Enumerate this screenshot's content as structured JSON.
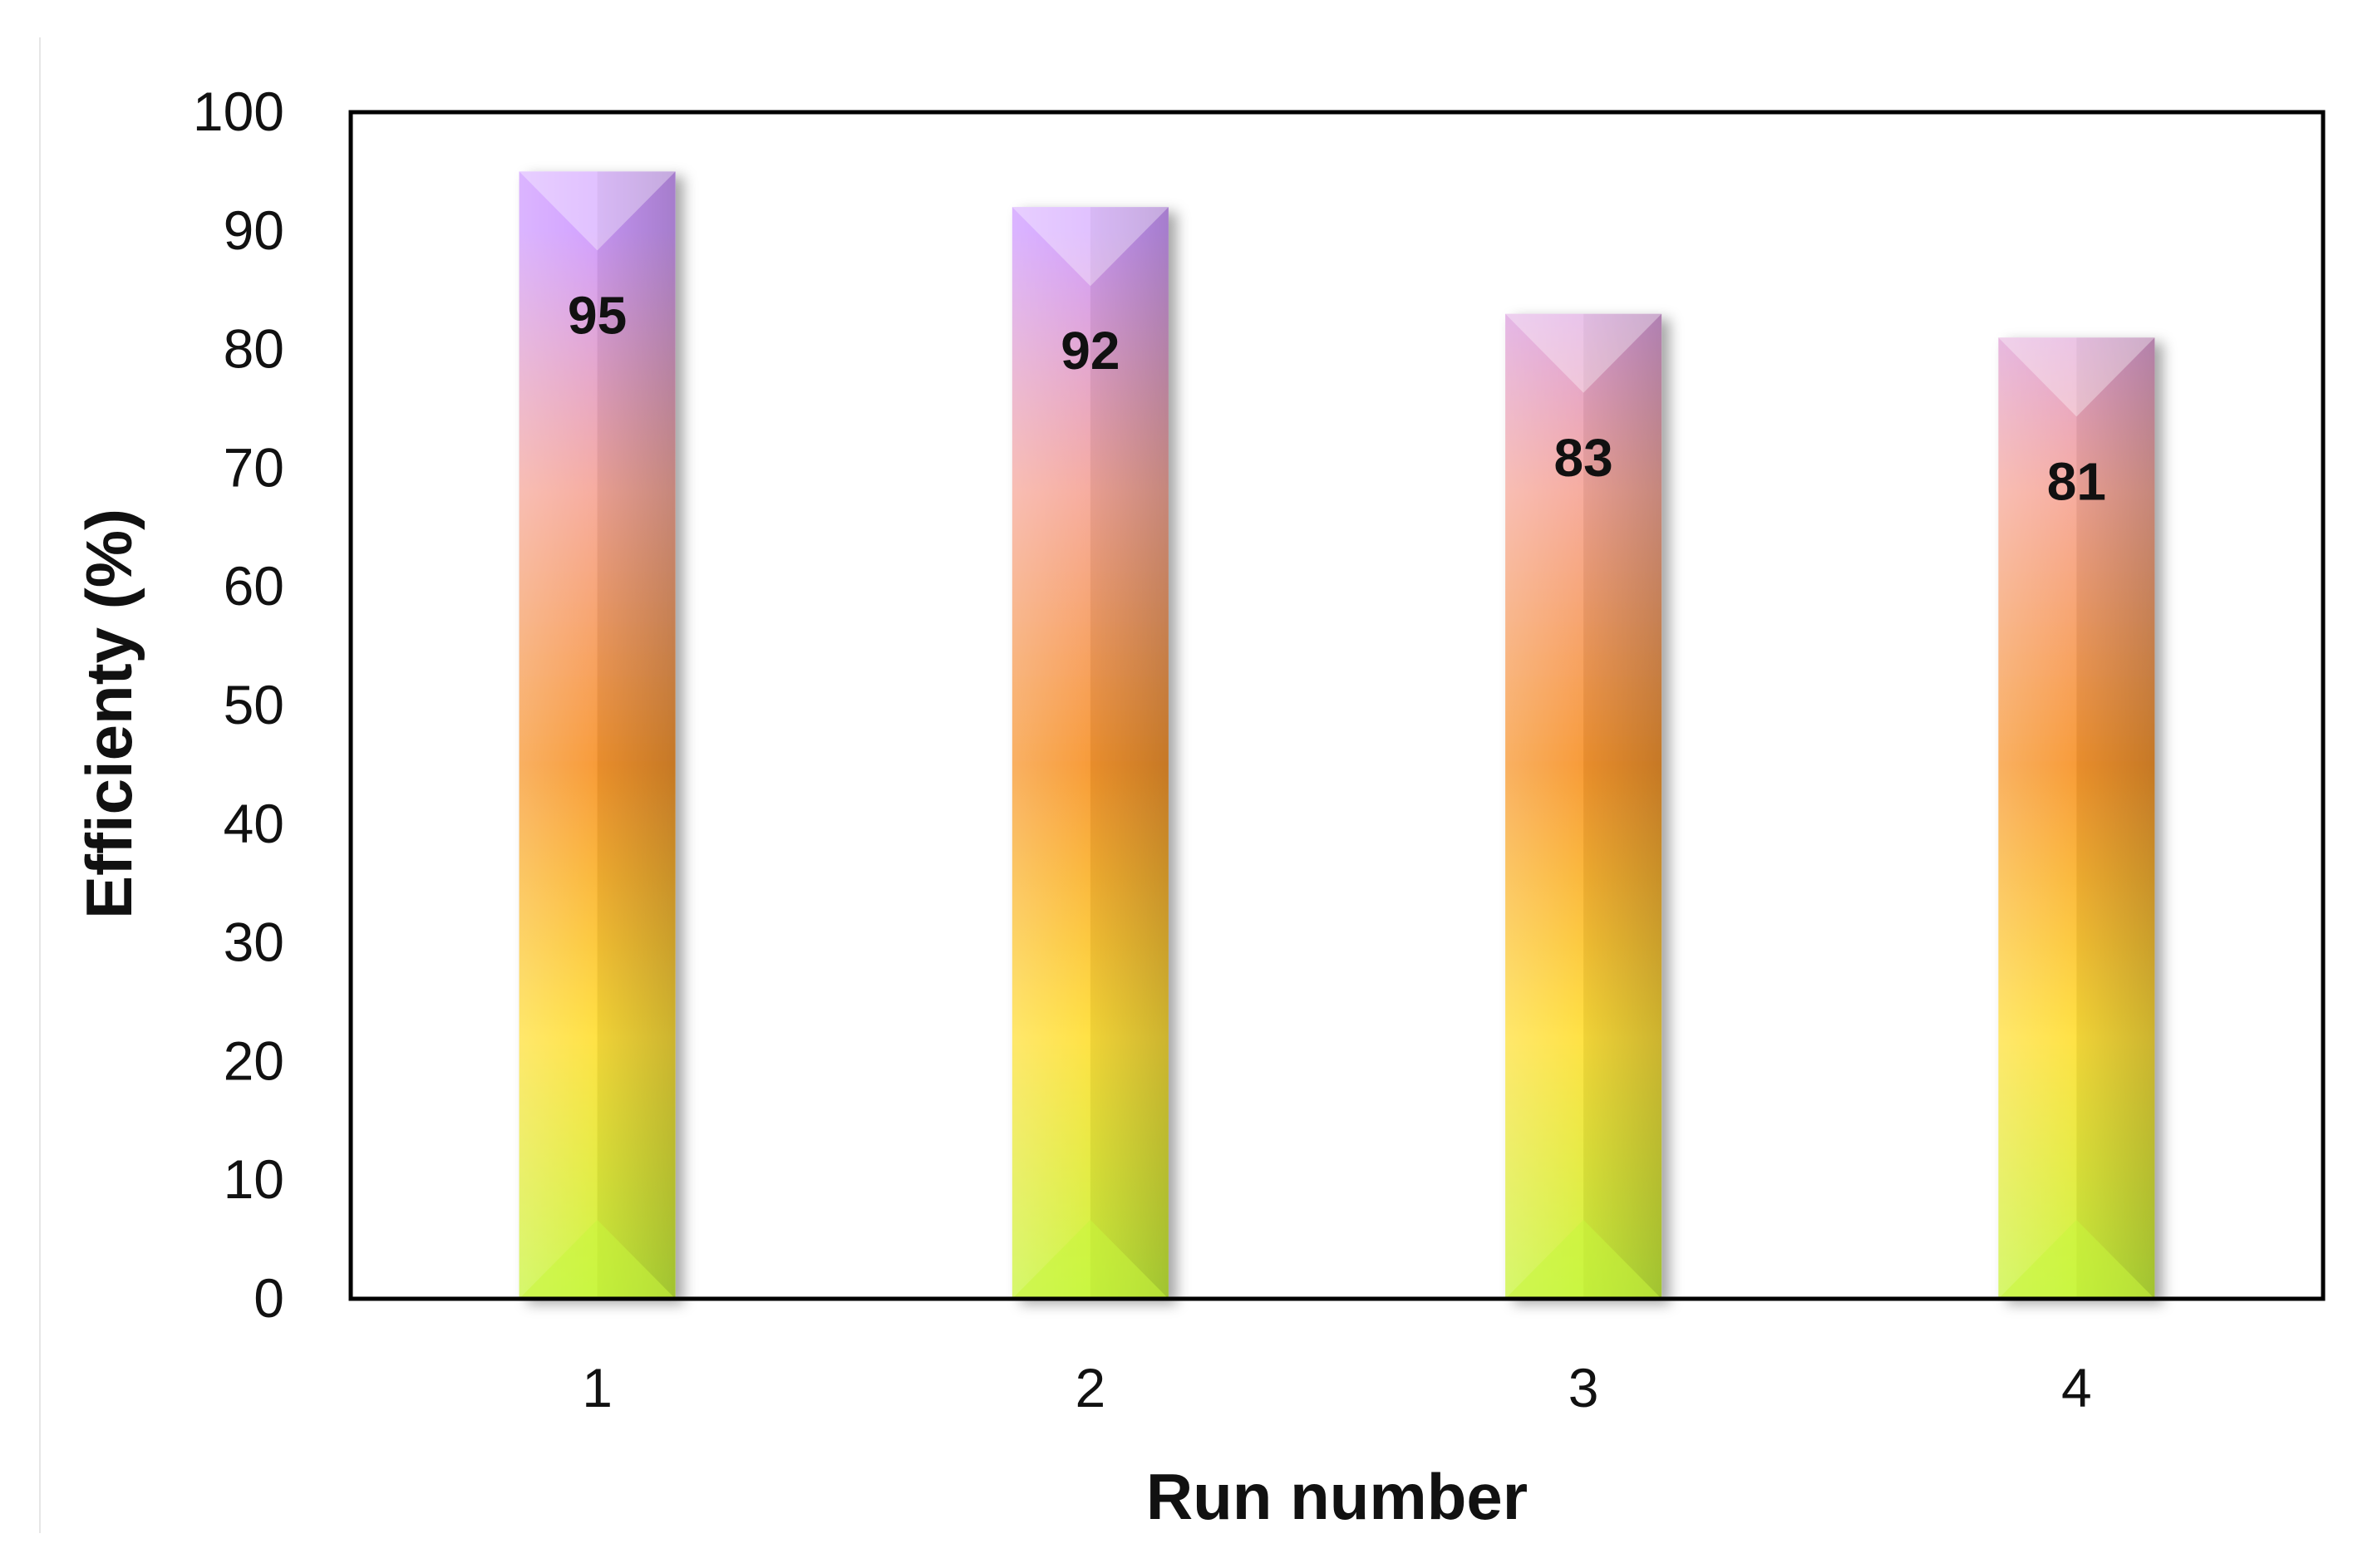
{
  "chart_data": {
    "type": "bar",
    "title": "",
    "xlabel": "Run number",
    "ylabel": "Efficienty (%)",
    "categories": [
      "1",
      "2",
      "3",
      "4"
    ],
    "values": [
      95,
      92,
      83,
      81
    ],
    "data_labels": [
      "95",
      "92",
      "83",
      "81"
    ],
    "ylim": [
      0,
      100
    ],
    "yticks": [
      0,
      10,
      20,
      30,
      40,
      50,
      60,
      70,
      80,
      90,
      100
    ],
    "ytick_labels": [
      "0",
      "10",
      "20",
      "30",
      "40",
      "50",
      "60",
      "70",
      "80",
      "90",
      "100"
    ],
    "grid": false,
    "legend": "none",
    "bar_style": "bevel gradient",
    "colors": {
      "gradient_bottom": "#c8f53c",
      "gradient_lower": "#ffe03a",
      "gradient_middle": "#f7962e",
      "gradient_upper": "#f6a89a",
      "gradient_top": "#cf9cff",
      "axis": "#000000",
      "text": "#111111"
    }
  }
}
